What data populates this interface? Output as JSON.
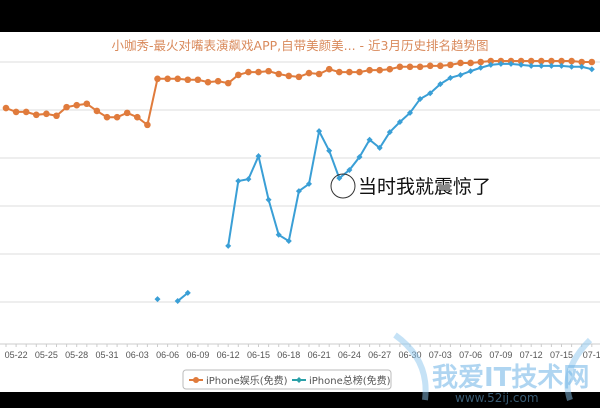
{
  "chart_data": {
    "type": "line",
    "title": "小咖秀-最火对嘴表演飙戏APP,自带美颜美... - 近3月历史排名趋势图",
    "xlabel": "",
    "ylabel": "",
    "ylim": [
      0,
      6.3
    ],
    "grid": true,
    "legend_position": "bottom",
    "categories": [
      "05-21",
      "05-22",
      "05-23",
      "05-24",
      "05-25",
      "05-26",
      "05-27",
      "05-28",
      "05-29",
      "05-30",
      "05-31",
      "06-01",
      "06-02",
      "06-03",
      "06-04",
      "06-05",
      "06-06",
      "06-07",
      "06-08",
      "06-09",
      "06-10",
      "06-11",
      "06-12",
      "06-13",
      "06-14",
      "06-15",
      "06-16",
      "06-17",
      "06-18",
      "06-19",
      "06-20",
      "06-21",
      "06-22",
      "06-23",
      "06-24",
      "06-25",
      "06-26",
      "06-27",
      "06-28",
      "06-29",
      "06-30",
      "07-01",
      "07-02",
      "07-03",
      "07-04",
      "07-05",
      "07-06",
      "07-07",
      "07-08",
      "07-09",
      "07-10",
      "07-11",
      "07-12",
      "07-13",
      "07-14",
      "07-15",
      "07-16",
      "07-17",
      "07-18"
    ],
    "tick_labels": [
      "05-22",
      "05-25",
      "05-28",
      "05-31",
      "06-03",
      "06-06",
      "06-09",
      "06-12",
      "06-15",
      "06-18",
      "06-21",
      "06-24",
      "06-27",
      "06-30",
      "07-03",
      "07-06",
      "07-09",
      "07-12",
      "07-15",
      "07-1"
    ],
    "series": [
      {
        "name": "iPhone娱乐(免费)",
        "color": "#e07b3c",
        "values": [
          5.04,
          4.96,
          4.96,
          4.9,
          4.92,
          4.88,
          5.06,
          5.1,
          5.13,
          4.98,
          4.85,
          4.85,
          4.94,
          4.85,
          4.69,
          5.65,
          5.65,
          5.65,
          5.63,
          5.63,
          5.58,
          5.6,
          5.56,
          5.73,
          5.79,
          5.79,
          5.81,
          5.75,
          5.71,
          5.69,
          5.77,
          5.75,
          5.85,
          5.79,
          5.79,
          5.79,
          5.83,
          5.83,
          5.85,
          5.9,
          5.9,
          5.9,
          5.92,
          5.92,
          5.94,
          5.98,
          5.98,
          6.0,
          6.02,
          6.02,
          6.02,
          6.02,
          6.02,
          6.02,
          6.02,
          6.02,
          6.02,
          6.0,
          6.0
        ]
      },
      {
        "name": "iPhone总榜(免费)",
        "color": "#3a9fd6",
        "values": [
          null,
          null,
          null,
          null,
          null,
          null,
          null,
          null,
          null,
          null,
          null,
          null,
          null,
          null,
          null,
          1.06,
          null,
          1.02,
          1.19,
          null,
          null,
          null,
          2.17,
          3.52,
          3.56,
          4.04,
          3.13,
          2.4,
          2.27,
          3.31,
          3.46,
          4.56,
          4.15,
          3.58,
          3.75,
          4.02,
          4.38,
          4.21,
          4.54,
          4.75,
          4.94,
          5.23,
          5.35,
          5.54,
          5.67,
          5.73,
          5.81,
          5.88,
          5.94,
          5.96,
          5.96,
          5.94,
          5.92,
          5.92,
          5.92,
          5.92,
          5.9,
          5.9,
          5.85
        ]
      }
    ],
    "annotation": {
      "text": "当时我就震惊了",
      "at": "06-24"
    }
  },
  "watermark": {
    "text": "我爱IT技术网",
    "url_text": "www.52ij.com"
  }
}
